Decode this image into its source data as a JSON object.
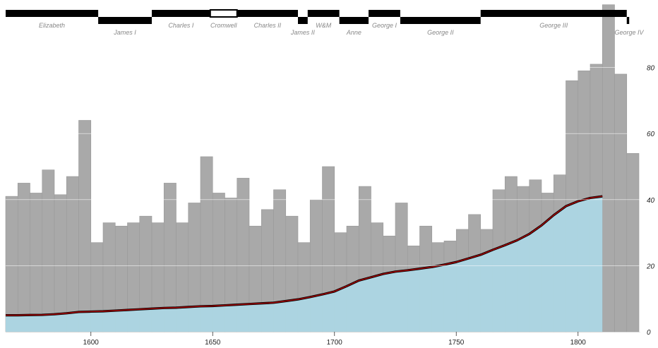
{
  "chart_data": {
    "type": "bar",
    "title": "",
    "xlabel": "",
    "ylabel": "",
    "xlim": [
      1565,
      1825
    ],
    "ylim": [
      0,
      100
    ],
    "grid": true,
    "x_ticks": [
      1600,
      1650,
      1700,
      1750,
      1800
    ],
    "y_ticks": [
      0,
      20,
      40,
      60,
      80
    ],
    "bar_width": 5,
    "bars": {
      "x": [
        1565,
        1570,
        1575,
        1580,
        1585,
        1590,
        1595,
        1600,
        1605,
        1610,
        1615,
        1620,
        1625,
        1630,
        1635,
        1640,
        1645,
        1650,
        1655,
        1660,
        1665,
        1670,
        1675,
        1680,
        1685,
        1690,
        1695,
        1700,
        1705,
        1710,
        1715,
        1720,
        1725,
        1730,
        1735,
        1740,
        1745,
        1750,
        1755,
        1760,
        1765,
        1770,
        1775,
        1780,
        1785,
        1790,
        1795,
        1800,
        1805,
        1810,
        1815,
        1820
      ],
      "values": [
        41,
        45,
        42,
        49,
        41.5,
        47,
        64,
        27,
        33,
        32,
        33,
        35,
        33,
        45,
        33,
        39,
        53,
        42,
        40.5,
        46.5,
        32,
        37,
        43,
        35,
        27,
        40,
        50,
        30,
        32,
        44,
        33,
        29,
        39,
        26,
        32,
        27,
        27.5,
        31,
        35.5,
        31,
        43,
        47,
        44,
        46,
        42,
        47.5,
        76,
        79,
        81,
        99,
        78,
        54
      ]
    },
    "wages": {
      "x": [
        1565,
        1570,
        1575,
        1580,
        1585,
        1590,
        1595,
        1600,
        1605,
        1610,
        1615,
        1620,
        1625,
        1630,
        1635,
        1640,
        1645,
        1650,
        1655,
        1660,
        1665,
        1670,
        1675,
        1680,
        1685,
        1690,
        1695,
        1700,
        1705,
        1710,
        1715,
        1720,
        1725,
        1730,
        1735,
        1740,
        1745,
        1750,
        1755,
        1760,
        1765,
        1770,
        1775,
        1780,
        1785,
        1790,
        1795,
        1800,
        1805,
        1810
      ],
      "values": [
        5,
        5,
        5.08,
        5.12,
        5.3,
        5.6,
        6,
        6.1,
        6.2,
        6.4,
        6.6,
        6.8,
        7,
        7.2,
        7.3,
        7.5,
        7.7,
        7.8,
        8,
        8.2,
        8.4,
        8.6,
        8.8,
        9.3,
        9.8,
        10.5,
        11.3,
        12.2,
        13.8,
        15.5,
        16.5,
        17.5,
        18.2,
        18.6,
        19.1,
        19.6,
        20.3,
        21.1,
        22.2,
        23.3,
        24.8,
        26.2,
        27.7,
        29.6,
        32.2,
        35.3,
        38,
        39.5,
        40.5,
        41
      ]
    },
    "reigns": [
      {
        "name": "Elizabeth",
        "start": 1565,
        "end": 1603,
        "row": "top"
      },
      {
        "name": "James I",
        "start": 1603,
        "end": 1625,
        "row": "bottom"
      },
      {
        "name": "Charles I",
        "start": 1625,
        "end": 1649,
        "row": "top"
      },
      {
        "name": "Cromwell",
        "start": 1649,
        "end": 1660,
        "row": "top",
        "hollow": true
      },
      {
        "name": "Charles II",
        "start": 1660,
        "end": 1685,
        "row": "top"
      },
      {
        "name": "James II",
        "start": 1685,
        "end": 1689,
        "row": "bottom"
      },
      {
        "name": "W&M",
        "start": 1689,
        "end": 1702,
        "row": "top"
      },
      {
        "name": "Anne",
        "start": 1702,
        "end": 1714,
        "row": "bottom"
      },
      {
        "name": "George I",
        "start": 1714,
        "end": 1727,
        "row": "top"
      },
      {
        "name": "George II",
        "start": 1727,
        "end": 1760,
        "row": "bottom"
      },
      {
        "name": "George III",
        "start": 1760,
        "end": 1820,
        "row": "top"
      },
      {
        "name": "George IV",
        "start": 1820,
        "end": 1821,
        "row": "bottom"
      }
    ],
    "colors": {
      "bars": "#a9a9a9",
      "bar_edge": "#9a9a9a",
      "area": "#add8e6",
      "line": "#a00000",
      "reign": "#000000",
      "grid": "#ffffff"
    }
  }
}
